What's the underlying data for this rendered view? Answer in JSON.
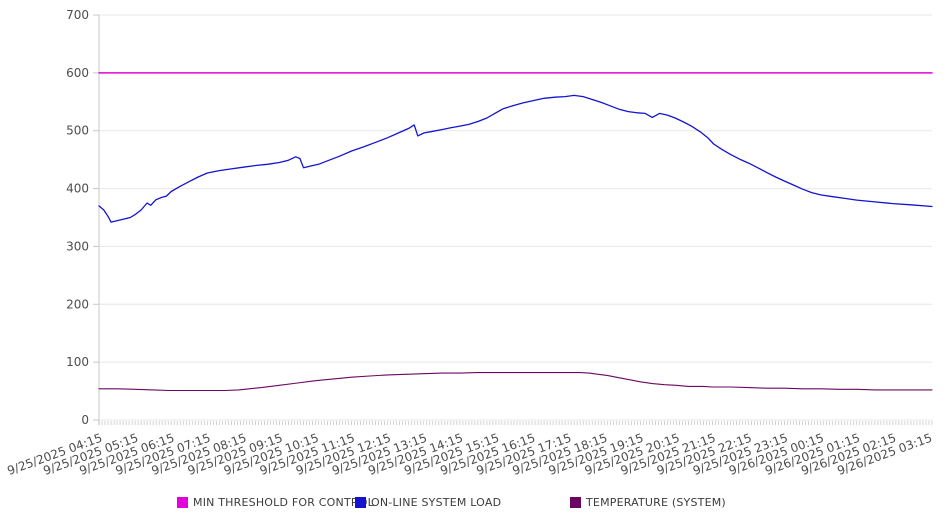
{
  "chart_data": {
    "type": "line",
    "title": "",
    "xlabel": "",
    "ylabel": "",
    "legend_position": "bottom",
    "grid": "horizontal-only",
    "y_axis": {
      "min": 0,
      "max": 700,
      "tick_step": 100,
      "ticks": [
        0,
        100,
        200,
        300,
        400,
        500,
        600,
        700
      ]
    },
    "x_axis": {
      "label_interval_minutes": 60,
      "minor_tick_minutes": 5,
      "labels": [
        "9/25/2025 04:15",
        "9/25/2025 05:15",
        "9/25/2025 06:15",
        "9/25/2025 07:15",
        "9/25/2025 08:15",
        "9/25/2025 09:15",
        "9/25/2025 10:15",
        "9/25/2025 11:15",
        "9/25/2025 12:15",
        "9/25/2025 13:15",
        "9/25/2025 14:15",
        "9/25/2025 15:15",
        "9/25/2025 16:15",
        "9/25/2025 17:15",
        "9/25/2025 18:15",
        "9/25/2025 19:15",
        "9/25/2025 20:15",
        "9/25/2025 21:15",
        "9/25/2025 22:15",
        "9/25/2025 23:15",
        "9/26/2025 00:15",
        "9/26/2025 01:15",
        "9/26/2025 02:15",
        "9/26/2025 03:15"
      ]
    },
    "style": {
      "grid_color": "#e7e7e7",
      "axis_color": "#c9c9c9",
      "minor_tick_color": "#b5b5b5",
      "label_color": "#4d4d4d"
    },
    "series": [
      {
        "id": "min-threshold-for-control",
        "name": "MIN THRESHOLD FOR CONTROL",
        "color": "#e203da",
        "width": 1.5,
        "points": [
          [
            0,
            600
          ],
          [
            1385,
            600
          ]
        ]
      },
      {
        "id": "on-line-system-load",
        "name": "ON-LINE SYSTEM LOAD",
        "color": "#1414d0",
        "width": 1.3,
        "points": [
          [
            0,
            370
          ],
          [
            8,
            363
          ],
          [
            15,
            352
          ],
          [
            20,
            342
          ],
          [
            28,
            344
          ],
          [
            40,
            347
          ],
          [
            52,
            350
          ],
          [
            60,
            355
          ],
          [
            70,
            363
          ],
          [
            80,
            375
          ],
          [
            86,
            371
          ],
          [
            95,
            381
          ],
          [
            105,
            385
          ],
          [
            112,
            387
          ],
          [
            120,
            395
          ],
          [
            135,
            404
          ],
          [
            150,
            412
          ],
          [
            165,
            420
          ],
          [
            180,
            427
          ],
          [
            200,
            431
          ],
          [
            220,
            434
          ],
          [
            240,
            437
          ],
          [
            262,
            440
          ],
          [
            280,
            442
          ],
          [
            300,
            445
          ],
          [
            315,
            449
          ],
          [
            327,
            455
          ],
          [
            334,
            452
          ],
          [
            340,
            436
          ],
          [
            352,
            439
          ],
          [
            365,
            442
          ],
          [
            380,
            448
          ],
          [
            400,
            456
          ],
          [
            420,
            465
          ],
          [
            440,
            472
          ],
          [
            460,
            480
          ],
          [
            480,
            488
          ],
          [
            500,
            497
          ],
          [
            515,
            504
          ],
          [
            524,
            510
          ],
          [
            530,
            491
          ],
          [
            540,
            496
          ],
          [
            555,
            499
          ],
          [
            570,
            502
          ],
          [
            585,
            505
          ],
          [
            600,
            508
          ],
          [
            615,
            511
          ],
          [
            630,
            516
          ],
          [
            645,
            522
          ],
          [
            658,
            530
          ],
          [
            672,
            538
          ],
          [
            688,
            543
          ],
          [
            705,
            548
          ],
          [
            722,
            552
          ],
          [
            740,
            556
          ],
          [
            758,
            558
          ],
          [
            775,
            559
          ],
          [
            790,
            561
          ],
          [
            805,
            559
          ],
          [
            820,
            554
          ],
          [
            835,
            549
          ],
          [
            850,
            543
          ],
          [
            865,
            537
          ],
          [
            880,
            533
          ],
          [
            895,
            531
          ],
          [
            908,
            530
          ],
          [
            920,
            523
          ],
          [
            932,
            530
          ],
          [
            945,
            527
          ],
          [
            958,
            522
          ],
          [
            972,
            515
          ],
          [
            985,
            508
          ],
          [
            1000,
            498
          ],
          [
            1012,
            488
          ],
          [
            1022,
            477
          ],
          [
            1035,
            468
          ],
          [
            1050,
            459
          ],
          [
            1065,
            451
          ],
          [
            1080,
            444
          ],
          [
            1095,
            436
          ],
          [
            1110,
            428
          ],
          [
            1125,
            420
          ],
          [
            1140,
            413
          ],
          [
            1155,
            406
          ],
          [
            1170,
            399
          ],
          [
            1185,
            393
          ],
          [
            1200,
            389
          ],
          [
            1220,
            386
          ],
          [
            1240,
            383
          ],
          [
            1260,
            380
          ],
          [
            1290,
            377
          ],
          [
            1320,
            374
          ],
          [
            1350,
            372
          ],
          [
            1385,
            369
          ]
        ]
      },
      {
        "id": "temperature-system",
        "name": "TEMPERATURE (SYSTEM)",
        "color": "#6b0760",
        "width": 1.1,
        "points": [
          [
            0,
            54
          ],
          [
            30,
            54
          ],
          [
            60,
            53
          ],
          [
            90,
            52
          ],
          [
            118,
            51
          ],
          [
            150,
            51
          ],
          [
            180,
            51
          ],
          [
            210,
            51
          ],
          [
            232,
            52
          ],
          [
            250,
            54
          ],
          [
            270,
            56
          ],
          [
            300,
            60
          ],
          [
            330,
            64
          ],
          [
            360,
            68
          ],
          [
            390,
            71
          ],
          [
            420,
            74
          ],
          [
            450,
            76
          ],
          [
            480,
            78
          ],
          [
            510,
            79
          ],
          [
            540,
            80
          ],
          [
            570,
            81
          ],
          [
            600,
            81
          ],
          [
            630,
            82
          ],
          [
            660,
            82
          ],
          [
            690,
            82
          ],
          [
            720,
            82
          ],
          [
            750,
            82
          ],
          [
            780,
            82
          ],
          [
            800,
            82
          ],
          [
            815,
            81
          ],
          [
            830,
            79
          ],
          [
            845,
            77
          ],
          [
            860,
            74
          ],
          [
            875,
            71
          ],
          [
            900,
            66
          ],
          [
            920,
            63
          ],
          [
            940,
            61
          ],
          [
            960,
            60
          ],
          [
            980,
            58
          ],
          [
            1005,
            58
          ],
          [
            1020,
            57
          ],
          [
            1050,
            57
          ],
          [
            1080,
            56
          ],
          [
            1110,
            55
          ],
          [
            1140,
            55
          ],
          [
            1170,
            54
          ],
          [
            1200,
            54
          ],
          [
            1230,
            53
          ],
          [
            1260,
            53
          ],
          [
            1290,
            52
          ],
          [
            1320,
            52
          ],
          [
            1350,
            52
          ],
          [
            1385,
            52
          ]
        ]
      }
    ]
  }
}
